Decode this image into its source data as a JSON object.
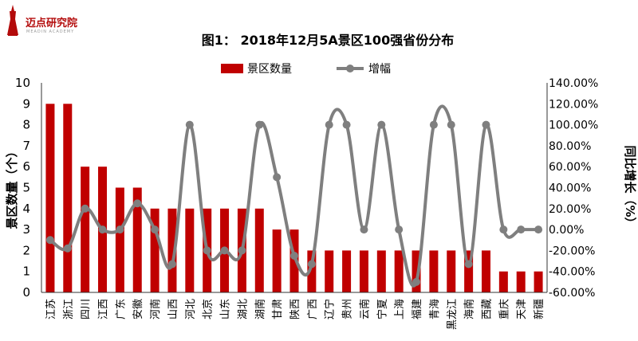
{
  "brand": {
    "name": "迈点研究院",
    "sub": "MEADIN ACADEMY"
  },
  "colors": {
    "bar": "#c00000",
    "line": "#7f7f7f",
    "brand": "#b30b0b"
  },
  "chart_data": {
    "type": "bar",
    "title": "图1： 2018年12月5A景区100强省份分布",
    "ylabel": "景区数量（个）",
    "y2label": "同比增长（%）",
    "ylim": [
      0,
      10
    ],
    "y2lim": [
      -60,
      140
    ],
    "yticks": [
      "0",
      "1",
      "2",
      "3",
      "4",
      "5",
      "6",
      "7",
      "8",
      "9",
      "10"
    ],
    "y2ticks": [
      "-60.00%",
      "-40.00%",
      "-20.00%",
      "0.00%",
      "20.00%",
      "40.00%",
      "60.00%",
      "80.00%",
      "100.00%",
      "120.00%",
      "140.00%"
    ],
    "legend_position": "top",
    "categories": [
      "江苏",
      "浙江",
      "四川",
      "江西",
      "广东",
      "安徽",
      "河南",
      "山西",
      "河北",
      "北京",
      "山东",
      "湖北",
      "湖南",
      "甘肃",
      "陕西",
      "广西",
      "辽宁",
      "贵州",
      "云南",
      "宁夏",
      "上海",
      "福建",
      "青海",
      "黑龙江",
      "海南",
      "西藏",
      "重庆",
      "天津",
      "新疆"
    ],
    "series": [
      {
        "name": "景区数量",
        "type": "bar",
        "axis": "left",
        "values": [
          9,
          9,
          6,
          6,
          5,
          5,
          4,
          4,
          4,
          4,
          4,
          4,
          4,
          3,
          3,
          2,
          2,
          2,
          2,
          2,
          2,
          2,
          2,
          2,
          2,
          2,
          1,
          1,
          1
        ]
      },
      {
        "name": "增幅",
        "type": "line",
        "axis": "right",
        "values": [
          -10,
          -18,
          20,
          0,
          0,
          25,
          0,
          -33,
          100,
          -20,
          -20,
          -20,
          100,
          50,
          -25,
          -33,
          100,
          100,
          0,
          100,
          0,
          -50,
          100,
          100,
          -33,
          100,
          0,
          0,
          0
        ]
      }
    ]
  }
}
